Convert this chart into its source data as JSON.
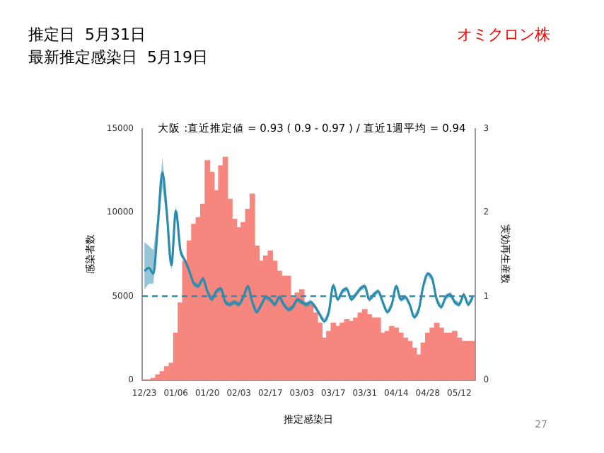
{
  "chart_data": {
    "type": "bar",
    "title": "推定日  5月31日",
    "subtitle": "最新推定感染日  5月19日",
    "xlabel": "推定感染日",
    "ylabel": "感染者数",
    "y2label": "実効再生産数",
    "annotations": [
      "オミクロン株",
      "大阪 :直近推定値 = 0.93 ( 0.9 - 0.97 ) / 直近1週平均 = 0.94",
      "27"
    ],
    "categories": [
      "12/23",
      null,
      null,
      null,
      null,
      null,
      null,
      "01/06",
      null,
      null,
      null,
      null,
      null,
      null,
      "01/20",
      null,
      null,
      null,
      null,
      null,
      null,
      "02/03",
      null,
      null,
      null,
      null,
      null,
      null,
      "02/17",
      null,
      null,
      null,
      null,
      null,
      null,
      "03/03",
      null,
      null,
      null,
      null,
      null,
      null,
      "03/17",
      null,
      null,
      null,
      null,
      null,
      null,
      "03/31",
      null,
      null,
      null,
      null,
      null,
      null,
      "04/14",
      null,
      null,
      null,
      null,
      null,
      null,
      "04/28",
      null,
      null,
      null,
      null,
      null,
      null,
      "05/12",
      null,
      null,
      null
    ],
    "series": [
      {
        "color": "#f7867f",
        "values": [
          0,
          0,
          100,
          300,
          500,
          800,
          1000,
          2800,
          4600,
          7100,
          8300,
          9300,
          9700,
          10500,
          13100,
          12400,
          11300,
          12800,
          13300,
          10800,
          9600,
          9100,
          9400,
          10200,
          11100,
          8000,
          7100,
          7400,
          7700,
          7100,
          6500,
          6200,
          6200,
          4900,
          5200,
          5400,
          4600,
          4500,
          4000,
          3400,
          2500,
          2900,
          3400,
          3200,
          3400,
          3600,
          3500,
          3700,
          4000,
          4200,
          3900,
          3700,
          3700,
          2800,
          2900,
          3200,
          3100,
          2800,
          2500,
          2300,
          1900,
          1500,
          2200,
          2800,
          3100,
          3400,
          3100,
          2800,
          2800,
          2900,
          2500,
          2300,
          2300,
          2300
        ]
      },
      {
        "type": "line",
        "axis": "y2",
        "color": "#2b8cae",
        "values": [
          1.3,
          1.34,
          1.27,
          1.86,
          2.48,
          1.99,
          1.37,
          2.02,
          1.55,
          1.43,
          1.3,
          1.15,
          1.12,
          1.21,
          1.06,
          0.96,
          1.06,
          1.09,
          0.93,
          0.9,
          0.93,
          0.9,
          0.99,
          1.12,
          0.93,
          0.81,
          0.9,
          0.99,
          0.96,
          0.9,
          0.99,
          0.9,
          0.84,
          0.87,
          0.96,
          0.93,
          0.9,
          0.93,
          0.87,
          0.78,
          0.7,
          0.81,
          1.13,
          0.96,
          1.06,
          1.09,
          0.96,
          1.02,
          1.09,
          1.12,
          0.96,
          1.02,
          1.06,
          0.93,
          0.81,
          0.9,
          1.12,
          0.96,
          0.99,
          0.9,
          0.75,
          0.84,
          1.12,
          1.27,
          1.21,
          0.96,
          0.87,
          0.99,
          1.02,
          0.93,
          0.9,
          1.02,
          0.9,
          0.99
        ],
        "lower": [
          1.08,
          1.15,
          1.15,
          1.75,
          2.3,
          1.9,
          1.3,
          1.96,
          1.52,
          1.4,
          1.27,
          1.12,
          1.09,
          1.18,
          1.03,
          0.93,
          1.03,
          1.06,
          0.9,
          0.87,
          0.9,
          0.87,
          0.96,
          1.09,
          0.9,
          0.78,
          0.87,
          0.96,
          0.93,
          0.87,
          0.96,
          0.87,
          0.81,
          0.84,
          0.93,
          0.9,
          0.87,
          0.9,
          0.84,
          0.75,
          0.67,
          0.78,
          1.1,
          0.93,
          1.03,
          1.06,
          0.93,
          0.99,
          1.06,
          1.09,
          0.93,
          0.99,
          1.03,
          0.9,
          0.78,
          0.87,
          1.09,
          0.93,
          0.96,
          0.87,
          0.72,
          0.81,
          1.09,
          1.24,
          1.18,
          0.93,
          0.84,
          0.96,
          0.99,
          0.9,
          0.87,
          0.99,
          0.87,
          0.96
        ],
        "upper": [
          1.65,
          1.6,
          1.55,
          1.97,
          2.66,
          2.08,
          1.44,
          2.08,
          1.58,
          1.46,
          1.33,
          1.18,
          1.15,
          1.24,
          1.09,
          0.99,
          1.09,
          1.12,
          0.96,
          0.93,
          0.96,
          0.93,
          1.02,
          1.15,
          0.96,
          0.84,
          0.93,
          1.02,
          0.99,
          0.93,
          1.02,
          0.93,
          0.87,
          0.9,
          0.99,
          0.96,
          0.93,
          0.96,
          0.9,
          0.81,
          0.73,
          0.84,
          1.16,
          0.99,
          1.09,
          1.12,
          0.99,
          1.05,
          1.12,
          1.15,
          0.99,
          1.05,
          1.09,
          0.96,
          0.84,
          0.93,
          1.15,
          0.99,
          1.02,
          0.93,
          0.78,
          0.87,
          1.15,
          1.3,
          1.24,
          0.99,
          0.9,
          1.02,
          1.05,
          0.96,
          0.93,
          1.05,
          0.93,
          1.02
        ]
      }
    ],
    "ylim": [
      0,
      15000
    ],
    "yticks": [
      0,
      5000,
      10000,
      15000
    ],
    "y2lim": [
      0,
      3
    ],
    "y2ticks": [
      0,
      1,
      2,
      3
    ],
    "ref_lines": [
      {
        "axis": "y2",
        "value": 1,
        "color": "#2b8cae",
        "line_style": "dashed"
      }
    ],
    "grid": false,
    "legend": false
  }
}
